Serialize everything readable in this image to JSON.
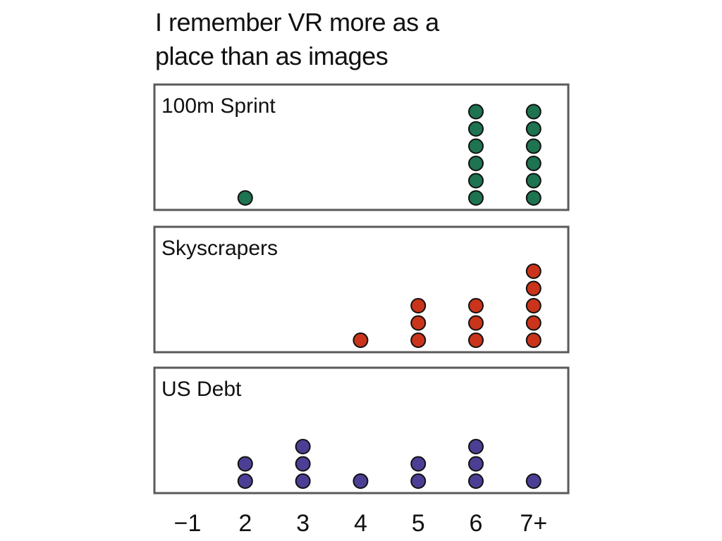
{
  "chart_data": {
    "type": "dot",
    "title_lines": [
      "I remember VR more as a",
      "place than as images"
    ],
    "x_ticks": [
      "−1",
      "2",
      "3",
      "4",
      "5",
      "6",
      "7+"
    ],
    "x_tick_values": [
      1,
      2,
      3,
      4,
      5,
      6,
      7
    ],
    "xlabel": "",
    "ylabel": "",
    "grid": false,
    "panels": [
      {
        "name": "100m Sprint",
        "color": "#1e7350",
        "counts": [
          0,
          1,
          0,
          0,
          0,
          6,
          6
        ]
      },
      {
        "name": "Skyscrapers",
        "color": "#c9341b",
        "counts": [
          0,
          0,
          0,
          1,
          3,
          3,
          5
        ]
      },
      {
        "name": "US Debt",
        "color": "#4b3f95",
        "counts": [
          0,
          2,
          3,
          1,
          2,
          3,
          1
        ]
      }
    ]
  }
}
